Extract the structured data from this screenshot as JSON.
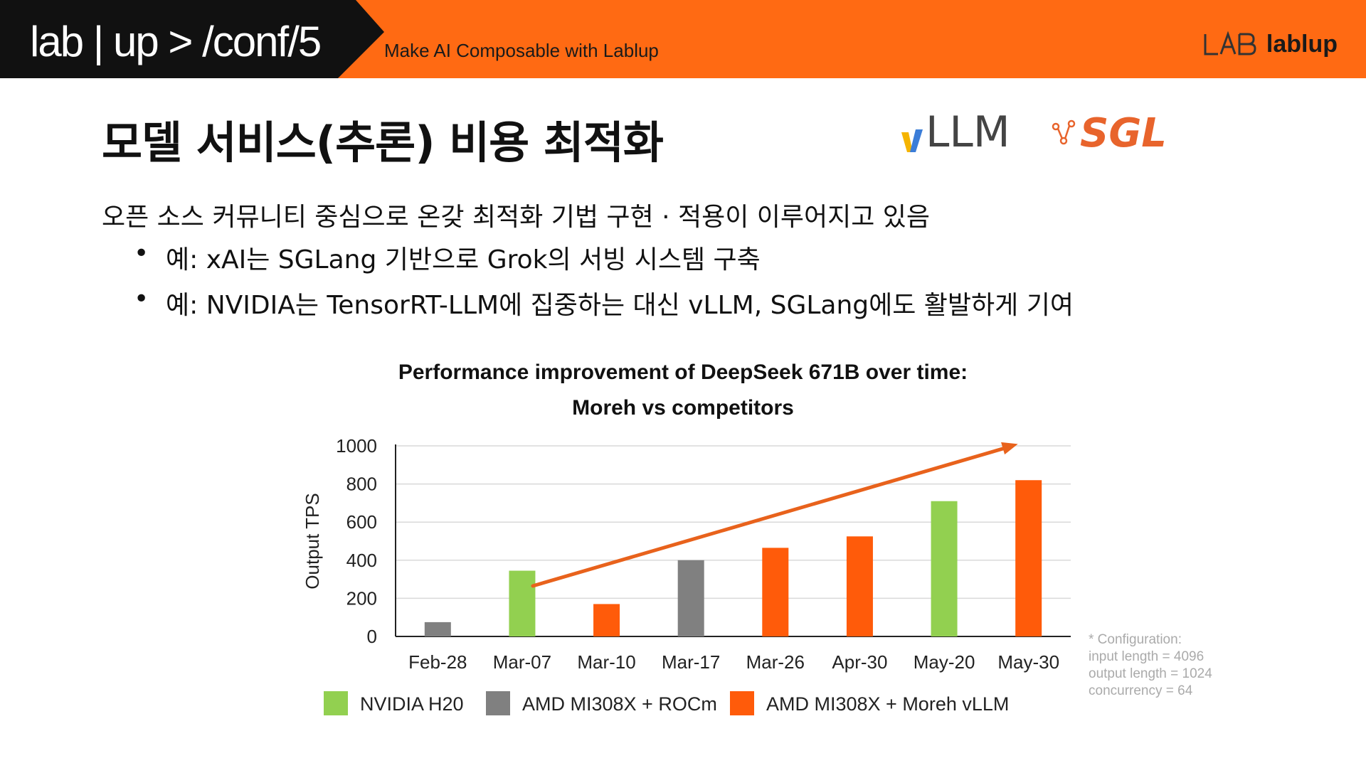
{
  "header": {
    "conf_title": "lab | up > /conf/5",
    "tagline": "Make AI Composable with Lablup",
    "brand": "lablup",
    "colors": {
      "accent": "#FF6A13",
      "dark": "#111111"
    }
  },
  "slide": {
    "title": "모델 서비스(추론) 비용 최적화",
    "logos": {
      "vllm": "LLM",
      "sgl": "SGL"
    },
    "bullet_main": "오픈 소스 커뮤니티 중심으로 온갖 최적화 기법 구현 · 적용이 이루어지고 있음",
    "bullet_dot": "•",
    "sub_bullets": [
      "예: xAI는 SGLang 기반으로 Grok의 서빙 시스템 구축",
      "예: NVIDIA는 TensorRT-LLM에 집중하는 대신 vLLM, SGLang에도 활발하게 기여"
    ],
    "config": [
      "* Configuration:",
      "input length = 4096",
      "output length = 1024",
      "concurrency = 64"
    ]
  },
  "chart_data": {
    "type": "bar",
    "title": "Performance improvement of DeepSeek 671B over time:",
    "subtitle": "Moreh vs competitors",
    "xlabel": "",
    "ylabel": "Output TPS",
    "ylim": [
      0,
      1000
    ],
    "yticks": [
      0,
      200,
      400,
      600,
      800,
      1000
    ],
    "categories": [
      "Feb-28",
      "Mar-07",
      "Mar-10",
      "Mar-17",
      "Mar-26",
      "Apr-30",
      "May-20",
      "May-30"
    ],
    "values": [
      75,
      345,
      170,
      400,
      465,
      525,
      710,
      820
    ],
    "bar_series": [
      "AMD MI308X + ROCm",
      "NVIDIA H20",
      "AMD MI308X + Moreh vLLM",
      "AMD MI308X + ROCm",
      "AMD MI308X + Moreh vLLM",
      "AMD MI308X + Moreh vLLM",
      "NVIDIA H20",
      "AMD MI308X + Moreh vLLM"
    ],
    "series": [
      {
        "name": "NVIDIA H20",
        "color": "#92D050"
      },
      {
        "name": "AMD MI308X + ROCm",
        "color": "#808080"
      },
      {
        "name": "AMD MI308X + Moreh vLLM",
        "color": "#FF5B0A"
      }
    ],
    "trend_arrow": {
      "from": {
        "x": "Mar-07",
        "y": 265
      },
      "to": {
        "x": "May-30",
        "y": 1010
      },
      "color": "#E8621C"
    },
    "grid": true,
    "legend": "bottom"
  }
}
